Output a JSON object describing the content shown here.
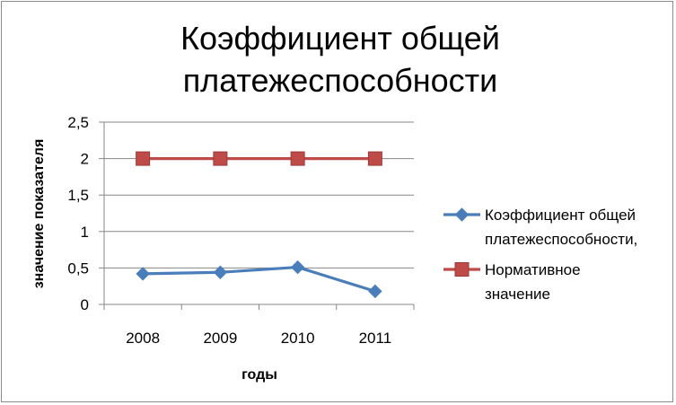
{
  "chart_data": {
    "type": "line",
    "title": [
      "Коэффициент общей",
      "платежеспособности"
    ],
    "xlabel": "годы",
    "ylabel": "значение показателя",
    "categories": [
      "2008",
      "2009",
      "2010",
      "2011"
    ],
    "yticks": [
      "0",
      "0,5",
      "1",
      "1,5",
      "2",
      "2,5"
    ],
    "ylim": [
      0,
      2.5
    ],
    "grid": true,
    "legend_position": "right",
    "series": [
      {
        "name": [
          "Коэффициент общей",
          "платежеспособности,"
        ],
        "values": [
          0.42,
          0.44,
          0.51,
          0.18
        ],
        "color": "#4a7ebb",
        "marker": "diamond"
      },
      {
        "name": [
          "Нормативное",
          "значение"
        ],
        "values": [
          2,
          2,
          2,
          2
        ],
        "color": "#be4b48",
        "marker": "square"
      }
    ]
  }
}
